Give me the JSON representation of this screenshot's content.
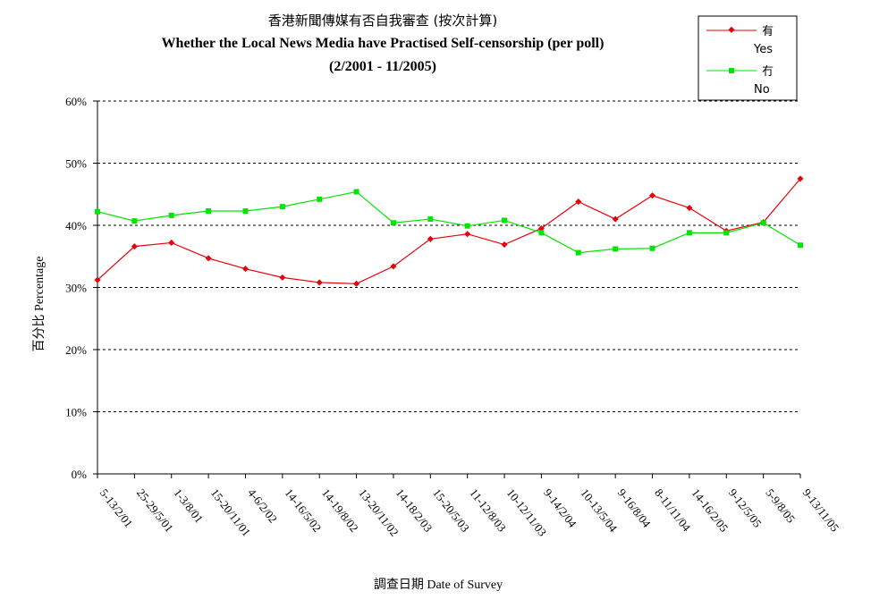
{
  "chart_data": {
    "type": "line",
    "title": "香港新聞傳媒有否自我審查 (按次計算)",
    "subtitle": "Whether the Local News Media have Practised Self-censorship (per poll)",
    "period": "(2/2001 - 11/2005)",
    "xlabel": "調查日期 Date of Survey",
    "ylabel": "百分比 Percentage",
    "ylim": [
      0,
      60
    ],
    "yticks": [
      "0%",
      "10%",
      "20%",
      "30%",
      "40%",
      "50%",
      "60%"
    ],
    "grid": "horizontal dashed",
    "legend_position": "top-right",
    "categories": [
      "5-13/2/01",
      "25-29/5/01",
      "1-3/8/01",
      "15-20/11/01",
      "4-6/2/02",
      "14-16/5/02",
      "14-19/8/02",
      "13-20/11/02",
      "14-18/2/03",
      "15-20/5/03",
      "11-12/8/03",
      "10-12/11/03",
      "9-14/2/04",
      "10-13/5/04",
      "9-16/8/04",
      "8-11/11/04",
      "14-16/2/05",
      "9-12/5/05",
      "5-9/8/05",
      "9-13/11/05"
    ],
    "series": [
      {
        "name": "有",
        "name_en": "Yes",
        "color": "#e8000b",
        "marker": "diamond",
        "values": [
          31.2,
          36.6,
          37.2,
          34.7,
          33.0,
          31.6,
          30.8,
          30.6,
          33.4,
          37.8,
          38.6,
          36.9,
          39.5,
          43.8,
          41.0,
          44.8,
          42.8,
          39.1,
          40.5,
          47.5
        ]
      },
      {
        "name": "冇",
        "name_en": "No",
        "color": "#00e600",
        "marker": "square",
        "values": [
          42.2,
          40.7,
          41.6,
          42.3,
          42.3,
          43.0,
          44.2,
          45.4,
          40.4,
          41.0,
          39.9,
          40.8,
          38.8,
          35.6,
          36.2,
          36.3,
          38.8,
          38.8,
          40.4,
          36.8
        ]
      }
    ]
  }
}
